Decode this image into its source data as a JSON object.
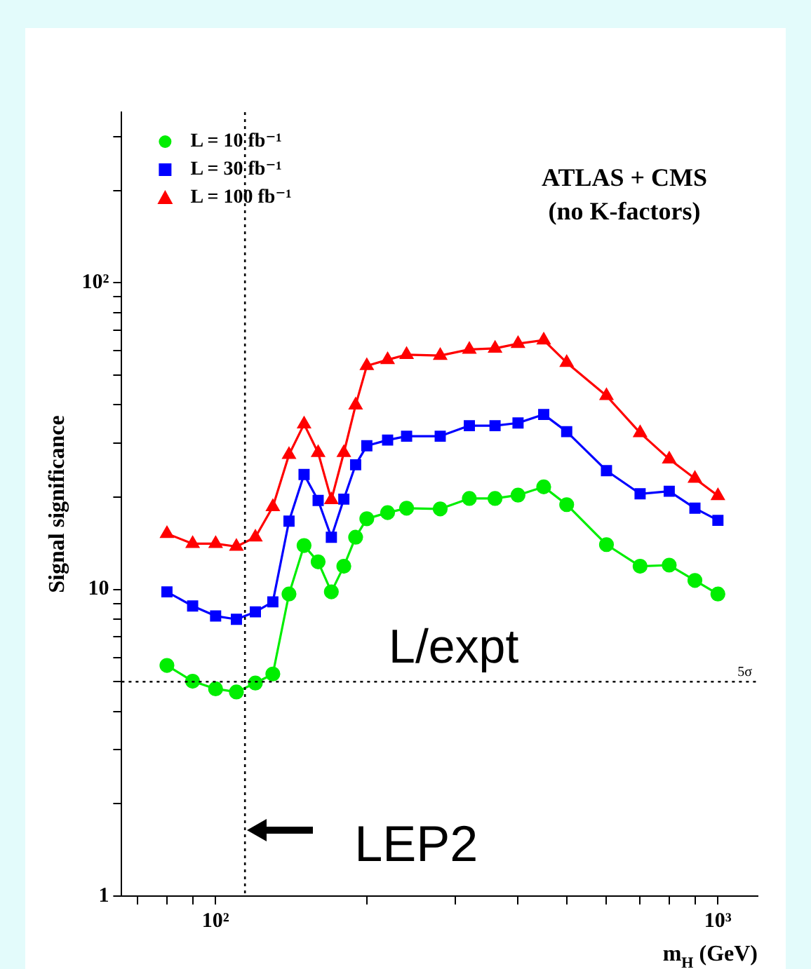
{
  "chart_data": {
    "type": "line",
    "ylabel": "Signal significance",
    "xlabel": "m$_{H}$ (GeV)",
    "log": "xy",
    "grid": false,
    "legend": "top left",
    "line_style": "solid",
    "x": [
      80,
      90,
      100,
      110,
      120,
      130,
      140,
      150,
      160,
      170,
      180,
      190,
      200,
      220,
      240,
      280,
      320,
      360,
      400,
      450,
      500,
      600,
      700,
      800,
      900,
      1000
    ],
    "xlim": [
      65,
      1200
    ],
    "xticks": [
      {
        "value": 70,
        "label": null
      },
      {
        "value": 80,
        "label": null
      },
      {
        "value": 90,
        "label": null
      },
      {
        "value": 100,
        "label": "10²"
      },
      {
        "value": 200,
        "label": null
      },
      {
        "value": 300,
        "label": null
      },
      {
        "value": 400,
        "label": null
      },
      {
        "value": 500,
        "label": null
      },
      {
        "value": 600,
        "label": null
      },
      {
        "value": 700,
        "label": null
      },
      {
        "value": 800,
        "label": null
      },
      {
        "value": 900,
        "label": null
      },
      {
        "value": 1000,
        "label": "10³"
      }
    ],
    "ylim": [
      1,
      360
    ],
    "yticks": [
      1,
      {
        "value": 2,
        "label": null
      },
      {
        "value": 3,
        "label": null
      },
      {
        "value": 4,
        "label": null
      },
      {
        "value": 5,
        "label": null
      },
      {
        "value": 6,
        "label": null
      },
      {
        "value": 7,
        "label": null
      },
      {
        "value": 8,
        "label": null
      },
      {
        "value": 9,
        "label": null
      },
      10,
      {
        "value": 20,
        "label": null
      },
      {
        "value": 30,
        "label": null
      },
      {
        "value": 40,
        "label": null
      },
      {
        "value": 50,
        "label": null
      },
      {
        "value": 60,
        "label": null
      },
      {
        "value": 70,
        "label": null
      },
      {
        "value": 80,
        "label": null
      },
      {
        "value": 90,
        "label": null
      },
      {
        "value": 100,
        "label": "10²"
      },
      {
        "value": 200,
        "label": null
      },
      {
        "value": 300,
        "label": null
      }
    ],
    "series": [
      {
        "name": "L = 10 fb⁻¹",
        "color": "#00ee00",
        "marker": "circle",
        "values": [
          5.65,
          5.02,
          4.74,
          4.63,
          4.95,
          5.3,
          9.66,
          13.9,
          12.3,
          9.82,
          11.9,
          14.8,
          17.0,
          17.8,
          18.4,
          18.3,
          19.8,
          19.8,
          20.3,
          21.6,
          18.9,
          14.0,
          11.9,
          12.0,
          10.7,
          9.66
        ]
      },
      {
        "name": "L = 30 fb⁻¹",
        "color": "#0000ff",
        "marker": "square",
        "values": [
          9.82,
          8.83,
          8.19,
          7.99,
          8.45,
          9.11,
          16.7,
          23.7,
          19.5,
          14.8,
          19.7,
          25.5,
          29.4,
          30.7,
          31.6,
          31.6,
          34.2,
          34.2,
          34.9,
          37.2,
          32.7,
          24.4,
          20.5,
          20.9,
          18.4,
          16.8
        ]
      },
      {
        "name": "L = 100 fb⁻¹",
        "color": "#ff0000",
        "marker": "triangle",
        "values": [
          15.2,
          14.1,
          14.1,
          13.8,
          14.8,
          18.6,
          27.5,
          34.6,
          27.9,
          19.6,
          27.9,
          39.9,
          53.6,
          56.1,
          58.3,
          57.9,
          60.6,
          61.1,
          63.3,
          65.0,
          54.9,
          42.8,
          32.4,
          26.6,
          23.0,
          20.2
        ]
      }
    ],
    "ref_lines": [
      {
        "axis": "y",
        "value": 5,
        "label": "5σ",
        "line_style": "dotted"
      },
      {
        "axis": "x",
        "value": 114.4,
        "label": "LEP2",
        "line_style": "dotted"
      }
    ],
    "annotations": [
      "ATLAS + CMS",
      "(no K-factors)",
      "L/expt"
    ]
  }
}
